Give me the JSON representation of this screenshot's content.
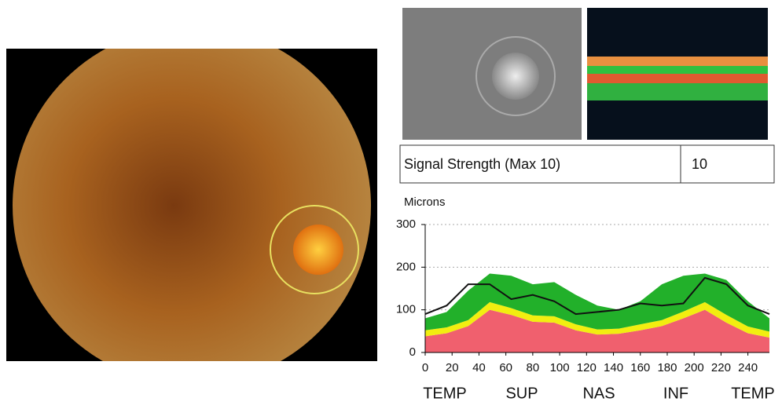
{
  "signal_strength": {
    "label": "Signal Strength (Max 10)",
    "value": 10
  },
  "chart_data": {
    "type": "area",
    "y_label": "Microns",
    "x": [
      0,
      16,
      32,
      48,
      64,
      80,
      96,
      112,
      128,
      144,
      160,
      176,
      192,
      208,
      224,
      240,
      256
    ],
    "xlim": [
      0,
      256
    ],
    "xticks": [
      0,
      20,
      40,
      60,
      80,
      100,
      120,
      140,
      160,
      180,
      200,
      220,
      240
    ],
    "ylim": [
      0,
      300
    ],
    "yticks": [
      0,
      100,
      200,
      300
    ],
    "grid": true,
    "region_labels": [
      "TEMP",
      "SUP",
      "NAS",
      "INF",
      "TEMP"
    ],
    "series": [
      {
        "style": "area",
        "color": "#f0606e",
        "values": [
          38,
          45,
          62,
          100,
          88,
          72,
          70,
          52,
          42,
          44,
          52,
          62,
          80,
          100,
          70,
          45,
          35
        ]
      },
      {
        "style": "area",
        "color": "#f2ee10",
        "values": [
          14,
          14,
          14,
          18,
          16,
          15,
          15,
          14,
          12,
          12,
          14,
          14,
          16,
          18,
          18,
          16,
          14
        ]
      },
      {
        "style": "area",
        "color": "#22b02a",
        "values": [
          28,
          36,
          69,
          67,
          76,
          73,
          80,
          69,
          56,
          44,
          54,
          84,
          84,
          67,
          82,
          59,
          31
        ]
      },
      {
        "style": "line",
        "color": "#111111",
        "values": [
          90,
          110,
          160,
          160,
          125,
          135,
          120,
          90,
          95,
          100,
          115,
          110,
          115,
          175,
          160,
          110,
          90
        ]
      }
    ]
  }
}
